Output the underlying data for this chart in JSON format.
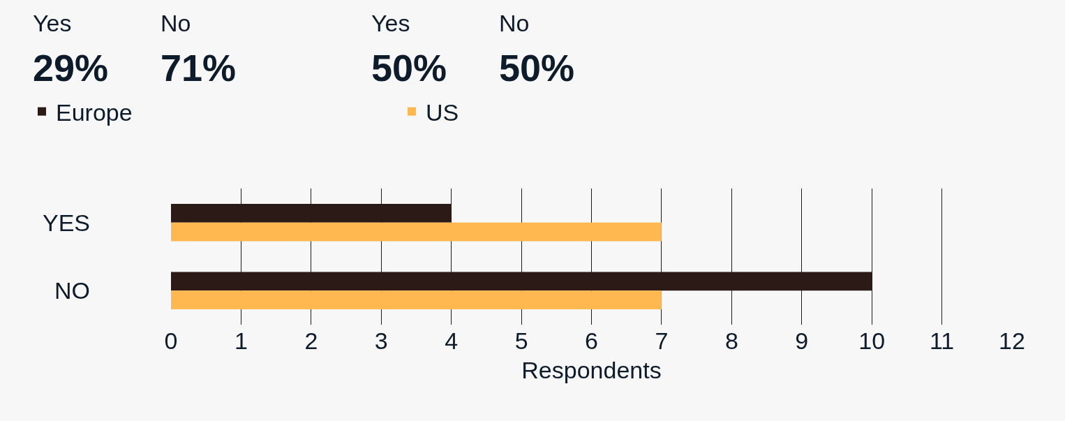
{
  "chart_data": {
    "type": "bar",
    "orientation": "horizontal",
    "xlabel": "Respondents",
    "categories": [
      "YES",
      "NO"
    ],
    "series": [
      {
        "name": "Europe",
        "color": "#2b1a16",
        "values": [
          4,
          10
        ]
      },
      {
        "name": "US",
        "color": "#ffb84f",
        "values": [
          7,
          7
        ]
      }
    ],
    "xlim": [
      0,
      12
    ],
    "xticks": [
      0,
      1,
      2,
      3,
      4,
      5,
      6,
      7,
      8,
      9,
      10,
      11,
      12
    ],
    "grid": "x",
    "legend": "top left",
    "annotations": [
      "Yes",
      "29%",
      "No",
      "71%",
      "Yes",
      "50%",
      "No",
      "50%"
    ]
  }
}
